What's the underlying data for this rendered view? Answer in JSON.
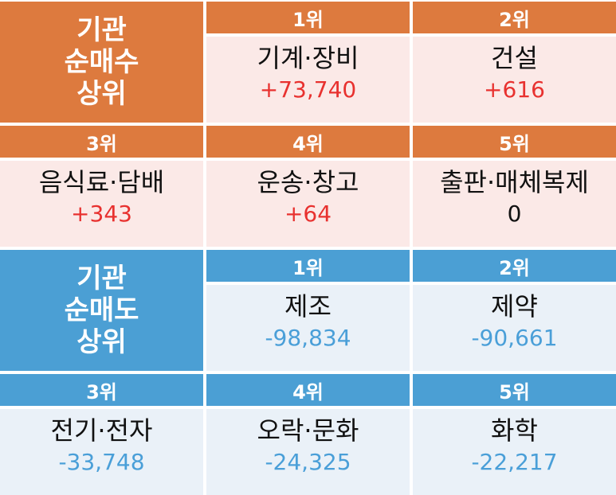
{
  "buy": {
    "title_lines": [
      "기관",
      "순매수",
      "상위"
    ],
    "ranks": [
      {
        "rank": "1위",
        "name": "기계·장비",
        "value": "+73,740"
      },
      {
        "rank": "2위",
        "name": "건설",
        "value": "+616"
      },
      {
        "rank": "3위",
        "name": "음식료·담배",
        "value": "+343"
      },
      {
        "rank": "4위",
        "name": "운송·창고",
        "value": "+64"
      },
      {
        "rank": "5위",
        "name": "출판·매체복제",
        "value": "0"
      }
    ],
    "colors": {
      "header": "#dd7a3e",
      "cell": "#fbe9e7",
      "positive": "#e8312f"
    }
  },
  "sell": {
    "title_lines": [
      "기관",
      "순매도",
      "상위"
    ],
    "ranks": [
      {
        "rank": "1위",
        "name": "제조",
        "value": "-98,834"
      },
      {
        "rank": "2위",
        "name": "제약",
        "value": "-90,661"
      },
      {
        "rank": "3위",
        "name": "전기·전자",
        "value": "-33,748"
      },
      {
        "rank": "4위",
        "name": "오락·문화",
        "value": "-24,325"
      },
      {
        "rank": "5위",
        "name": "화학",
        "value": "-22,217"
      }
    ],
    "colors": {
      "header": "#4b9fd4",
      "cell": "#eaf1f8",
      "negative": "#4a9fd8"
    }
  }
}
